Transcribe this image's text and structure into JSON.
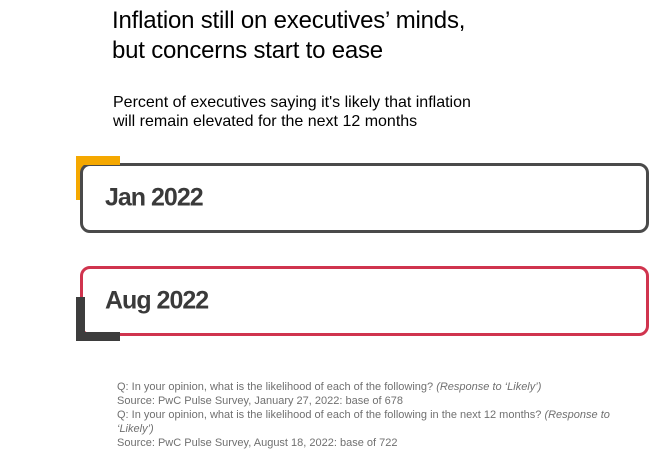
{
  "chart_data": {
    "type": "bar",
    "title": "Inflation still on executives’ minds, but concerns start to ease",
    "title_lines": [
      "Inflation still on executives’ minds,",
      "but concerns start to ease"
    ],
    "subtitle": "Percent of executives saying it's likely that inflation will remain elevated for the next 12 months",
    "subtitle_lines": [
      "Percent of executives saying it's likely that inflation",
      "will remain elevated for the next 12 months"
    ],
    "categories": [
      "Jan 2022",
      "Aug 2022"
    ],
    "colors": {
      "jan_border": "#4a4a4a",
      "aug_border": "#d0344e",
      "accent_top": "#f5a800",
      "accent_bottom": "#3d3d3d"
    }
  },
  "notes": {
    "q1": "Q: In your opinion, what is the likelihood of each of the following?",
    "q1_response": "(Response to ‘Likely’)",
    "source1": "Source: PwC Pulse Survey, January 27, 2022: base of 678",
    "q2": "Q: In your opinion, what is the likelihood of each of the following in the next 12 months?",
    "q2_response": "(Response to ‘Likely’)",
    "source2": "Source: PwC Pulse Survey, August 18, 2022: base of 722"
  }
}
